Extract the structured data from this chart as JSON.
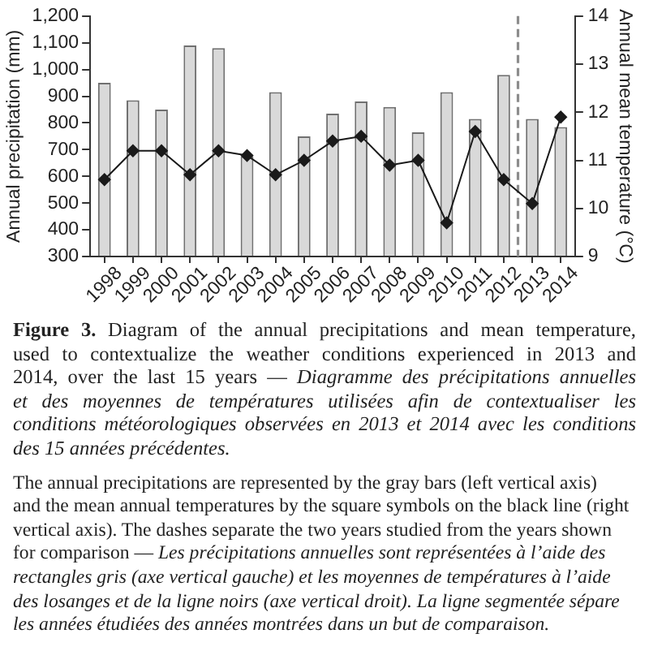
{
  "chart_data": {
    "type": "bar",
    "x": [
      1998,
      1999,
      2000,
      2001,
      2002,
      2003,
      2004,
      2005,
      2006,
      2007,
      2008,
      2009,
      2010,
      2011,
      2012,
      2013,
      2014
    ],
    "series": [
      {
        "color": "#d9d9d9",
        "values": [
          950,
          885,
          850,
          1090,
          1080,
          675,
          915,
          750,
          835,
          880,
          860,
          765,
          915,
          815,
          980,
          815,
          785
        ]
      },
      {
        "type": "line",
        "axis": "y2",
        "color": "#1a1a1a",
        "values": [
          10.6,
          11.2,
          11.2,
          10.7,
          11.2,
          11.1,
          10.7,
          11.0,
          11.4,
          11.5,
          10.9,
          11.0,
          9.7,
          11.6,
          10.6,
          10.1,
          11.9
        ]
      }
    ],
    "xlim": [
      1997.5,
      2014.5
    ],
    "xticks": [
      1998,
      1999,
      2000,
      2001,
      2002,
      2003,
      2004,
      2005,
      2006,
      2007,
      2008,
      2009,
      2010,
      2011,
      2012,
      2013,
      2014
    ],
    "ylabel": "Annual precipitation (mm)",
    "ylim": [
      300,
      1200
    ],
    "yticks": [
      300,
      400,
      500,
      600,
      700,
      800,
      900,
      {
        "value": 1000,
        "label": "1,000"
      },
      {
        "value": 1100,
        "label": "1,100"
      },
      {
        "value": 1200,
        "label": "1,200"
      }
    ],
    "y2label": "Annual mean temperature (°C)",
    "y2lim": [
      9,
      14
    ],
    "y2ticks": [
      9,
      10,
      11,
      12,
      13,
      14
    ],
    "marker": "diamond",
    "ref_lines": [
      {
        "axis": "x",
        "value": 2012.5,
        "color": "#8c8c8c",
        "line_style": "dashed"
      }
    ],
    "annotations": [
      "Figure 3.",
      "Diagram of the annual precipitations and mean temperature,",
      "used to contextualize the weather conditions experienced in 2013 and",
      "2014, over the last 15 years —",
      "Diagramme des précipitations annuelles",
      "et des moyennes de températures utilisées afin de contextualiser les",
      "conditions météorologiques observées en 2013 et 2014 avec les conditions",
      "des 15 années précédentes.",
      "The annual precipitations are represented by the gray bars (left vertical axis)",
      "and the mean annual temperatures by the square symbols on the black line (right",
      "vertical axis). The dashes separate the two years studied from the years shown",
      "for comparison —",
      "Les précipitations annuelles sont représentées à l’aide des",
      "rectangles gris (axe vertical gauche) et les moyennes de températures à l’aide",
      "des losanges et de la ligne noirs (axe vertical droit). La ligne segmentée sépare",
      "les années étudiées des années montrées dans un but de comparaison."
    ]
  }
}
